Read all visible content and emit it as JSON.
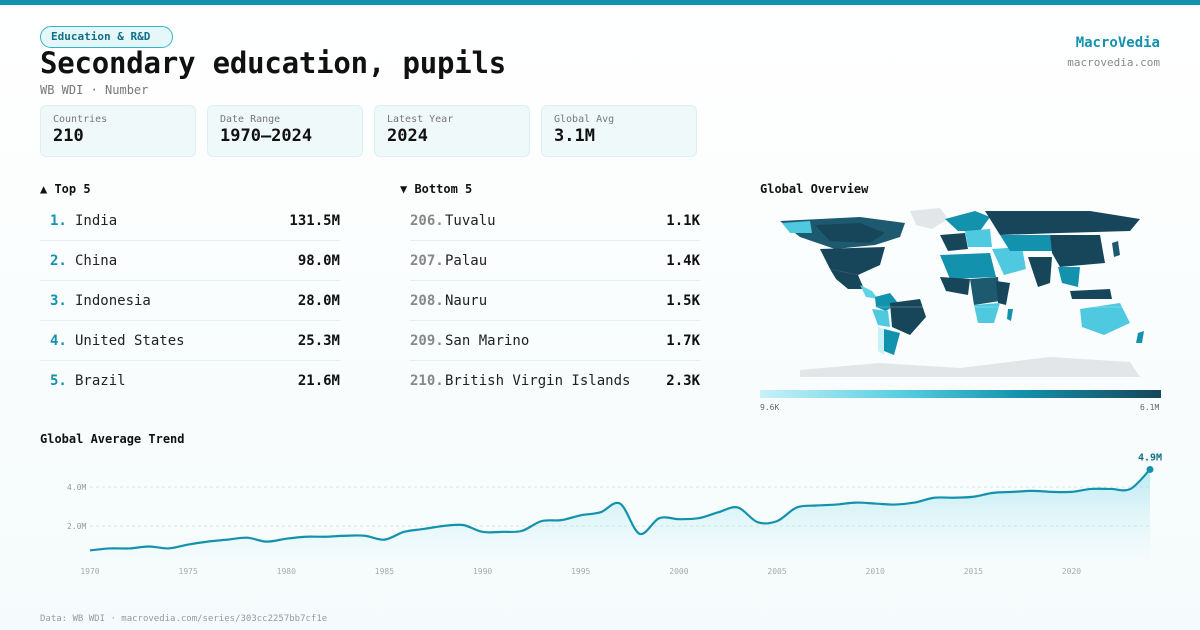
{
  "header": {
    "category": "Education & R&D",
    "title": "Secondary education, pupils",
    "subtitle": "WB WDI · Number",
    "brand": "MacroVedia",
    "brand_url": "macrovedia.com"
  },
  "stats": [
    {
      "label": "Countries",
      "value": "210"
    },
    {
      "label": "Date Range",
      "value": "1970–2024"
    },
    {
      "label": "Latest Year",
      "value": "2024"
    },
    {
      "label": "Global Avg",
      "value": "3.1M"
    }
  ],
  "top5": {
    "title": "▲ Top 5",
    "items": [
      {
        "rank": "1.",
        "name": "India",
        "value": "131.5M"
      },
      {
        "rank": "2.",
        "name": "China",
        "value": "98.0M"
      },
      {
        "rank": "3.",
        "name": "Indonesia",
        "value": "28.0M"
      },
      {
        "rank": "4.",
        "name": "United States",
        "value": "25.3M"
      },
      {
        "rank": "5.",
        "name": "Brazil",
        "value": "21.6M"
      }
    ]
  },
  "bottom5": {
    "title": "▼ Bottom 5",
    "items": [
      {
        "rank": "206.",
        "name": "Tuvalu",
        "value": "1.1K"
      },
      {
        "rank": "207.",
        "name": "Palau",
        "value": "1.4K"
      },
      {
        "rank": "208.",
        "name": "Nauru",
        "value": "1.5K"
      },
      {
        "rank": "209.",
        "name": "San Marino",
        "value": "1.7K"
      },
      {
        "rank": "210.",
        "name": "British Virgin Islands",
        "value": "2.3K"
      }
    ]
  },
  "map": {
    "title": "Global Overview",
    "legend_min": "9.6K",
    "legend_max": "6.1M",
    "colors": {
      "low": "#c8f1f8",
      "mid": "#1392ad",
      "high": "#17465a",
      "nodata": "#e3e6e8"
    }
  },
  "trend": {
    "title": "Global Average Trend",
    "last_label": "4.9M"
  },
  "footer": "Data: WB WDI · macrovedia.com/series/303cc2257bb7cf1e",
  "chart_data": {
    "type": "area",
    "title": "Global Average Trend",
    "xlabel": "",
    "ylabel": "",
    "x": [
      1970,
      1971,
      1972,
      1973,
      1974,
      1975,
      1976,
      1977,
      1978,
      1979,
      1980,
      1981,
      1982,
      1983,
      1984,
      1985,
      1986,
      1987,
      1988,
      1989,
      1990,
      1991,
      1992,
      1993,
      1994,
      1995,
      1996,
      1997,
      1998,
      1999,
      2000,
      2001,
      2002,
      2003,
      2004,
      2005,
      2006,
      2007,
      2008,
      2009,
      2010,
      2011,
      2012,
      2013,
      2014,
      2015,
      2016,
      2017,
      2018,
      2019,
      2020,
      2021,
      2022,
      2023,
      2024
    ],
    "values": [
      0.75,
      0.85,
      0.85,
      0.95,
      0.85,
      1.05,
      1.2,
      1.3,
      1.4,
      1.2,
      1.35,
      1.45,
      1.45,
      1.5,
      1.5,
      1.3,
      1.7,
      1.85,
      2.0,
      2.05,
      1.7,
      1.7,
      1.75,
      2.25,
      2.3,
      2.55,
      2.7,
      3.15,
      1.6,
      2.4,
      2.35,
      2.4,
      2.7,
      2.95,
      2.2,
      2.25,
      2.95,
      3.05,
      3.1,
      3.2,
      3.15,
      3.1,
      3.2,
      3.45,
      3.45,
      3.5,
      3.7,
      3.75,
      3.8,
      3.75,
      3.75,
      3.9,
      3.9,
      3.9,
      4.9
    ],
    "x_ticks": [
      "1970",
      "1975",
      "1980",
      "1985",
      "1990",
      "1995",
      "2000",
      "2005",
      "2010",
      "2015",
      "2020"
    ],
    "y_ticks": [
      "2.0M",
      "4.0M"
    ],
    "ylim": [
      0,
      5.2
    ],
    "y_unit": "M",
    "grid": true,
    "color": "#1392ad"
  }
}
